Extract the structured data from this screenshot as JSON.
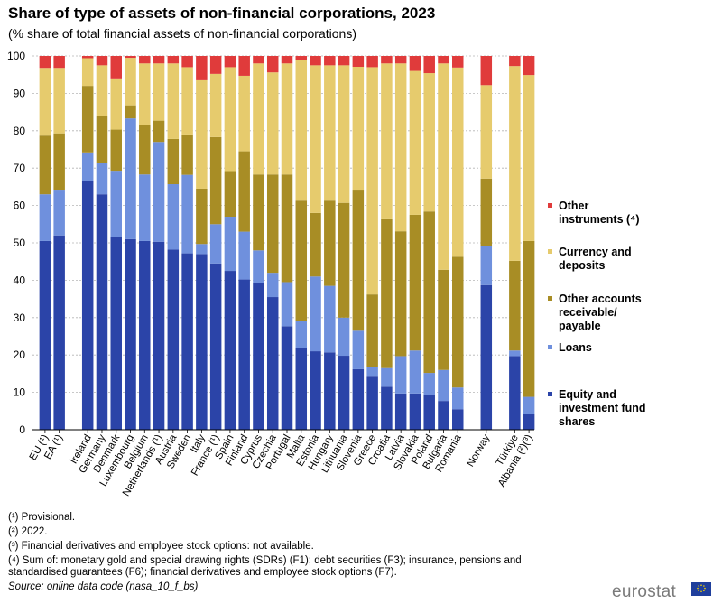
{
  "header": {
    "title": "Share of type of assets of non-financial corporations, 2023",
    "subtitle": "(% share of total financial assets of non-financial corporations)"
  },
  "chart_data": {
    "type": "bar",
    "stacked": true,
    "title": "Share of type of assets of non-financial corporations, 2023",
    "subtitle": "(% share of total financial assets of non-financial corporations)",
    "xlabel": "",
    "ylabel": "",
    "ylim": [
      0,
      100
    ],
    "yticks": [
      0,
      10,
      20,
      30,
      40,
      50,
      60,
      70,
      80,
      90,
      100
    ],
    "grid": true,
    "legend_position": "right",
    "categories": [
      "EU (¹)",
      "EA (¹)",
      "",
      "Ireland",
      "Germany",
      "Denmark",
      "Luxembourg",
      "Belgium",
      "Netherlands (¹)",
      "Austria",
      "Sweden",
      "Italy",
      "France (¹)",
      "Spain",
      "Finland",
      "Cyprus",
      "Czechia",
      "Portugal",
      "Malta",
      "Estonia",
      "Hungary",
      "Lithuania",
      "Slovenia",
      "Greece",
      "Croatia",
      "Latvia",
      "Slovakia",
      "Poland",
      "Bulgaria",
      "Romania",
      "",
      "Norway",
      "",
      "Türkiye",
      "Albania (²)(³)"
    ],
    "series": [
      {
        "name": "Equity and investment fund shares",
        "color": "#2b44a8",
        "values": [
          50.5,
          52,
          null,
          66.5,
          63,
          51.5,
          51,
          50.5,
          50.3,
          48.2,
          47.2,
          47,
          44.5,
          42.5,
          40.2,
          39.2,
          35.5,
          27.7,
          21.8,
          21,
          20.7,
          19.8,
          16.2,
          14.2,
          11.5,
          9.7,
          9.7,
          9.2,
          7.7,
          5.5,
          null,
          38.7,
          null,
          19.7,
          4.3
        ]
      },
      {
        "name": "Loans",
        "color": "#6f90dd",
        "values": [
          12.5,
          12,
          null,
          7.7,
          8.5,
          17.8,
          32.3,
          17.8,
          26.7,
          17.5,
          21,
          2.7,
          10.5,
          14.5,
          12.8,
          8.8,
          6.5,
          11.8,
          7.3,
          20,
          17.8,
          10.2,
          10.3,
          2.5,
          5,
          10,
          11.5,
          6,
          8.3,
          5.8,
          null,
          10.5,
          null,
          1.5,
          4.5
        ]
      },
      {
        "name": "Other accounts receivable/ payable",
        "color": "#a88d25",
        "values": [
          15.7,
          15.3,
          null,
          17.8,
          12.5,
          11,
          3.5,
          13.3,
          5.7,
          12.1,
          10.8,
          14.8,
          23.3,
          12.2,
          21.5,
          20.3,
          26.3,
          28.8,
          32.2,
          17,
          22.8,
          30.7,
          37.5,
          19.5,
          39.8,
          33.4,
          36.3,
          43.2,
          26.8,
          35,
          null,
          18,
          null,
          24,
          41.7
        ]
      },
      {
        "name": "Currency and deposits",
        "color": "#e6cb6d",
        "values": [
          18.1,
          17.5,
          null,
          7.4,
          13.5,
          13.7,
          12.7,
          16.4,
          15.3,
          20.2,
          18,
          29,
          16.9,
          27.8,
          20.2,
          29.7,
          27.3,
          29.7,
          37.5,
          39.5,
          36.2,
          36.8,
          33.1,
          60.8,
          41.7,
          44.9,
          38.5,
          37,
          55.2,
          50.6,
          null,
          25,
          null,
          52.1,
          44.4
        ]
      },
      {
        "name": "Other instruments (⁴)",
        "color": "#e03b3b",
        "values": [
          3.2,
          3.2,
          null,
          0.6,
          2.5,
          6,
          0.5,
          2,
          2,
          2,
          3,
          6.5,
          4.8,
          3,
          5.3,
          2,
          4.4,
          2,
          1.2,
          2.5,
          2.5,
          2.5,
          2.9,
          3,
          2,
          2,
          4,
          4.6,
          2,
          3.1,
          null,
          7.8,
          null,
          2.7,
          5.1
        ]
      }
    ]
  },
  "legend": {
    "items": [
      {
        "label_lines": [
          "Other",
          "instruments (⁴)"
        ],
        "color": "#e03b3b"
      },
      {
        "label_lines": [
          "Currency and",
          "deposits"
        ],
        "color": "#e6cb6d"
      },
      {
        "label_lines": [
          "Other accounts",
          "receivable/",
          "payable"
        ],
        "color": "#a88d25"
      },
      {
        "label_lines": [
          "Loans"
        ],
        "color": "#6f90dd"
      },
      {
        "label_lines": [
          "Equity and",
          "investment fund",
          "shares"
        ],
        "color": "#2b44a8"
      }
    ]
  },
  "footnotes": {
    "note1": "(¹) Provisional.",
    "note2": "(²) 2022.",
    "note3": "(³) Financial derivatives and employee stock options: not available.",
    "note4_line1": "(⁴) Sum of: monetary gold and special drawing rights (SDRs) (F1); debt securities (F3); insurance, pensions and",
    "note4_line2": "standardised guarantees (F6); financial derivatives and employee stock options (F7).",
    "source": "Source: online data code (nasa_10_f_bs)"
  },
  "branding": {
    "logo_text": "eurostat"
  }
}
